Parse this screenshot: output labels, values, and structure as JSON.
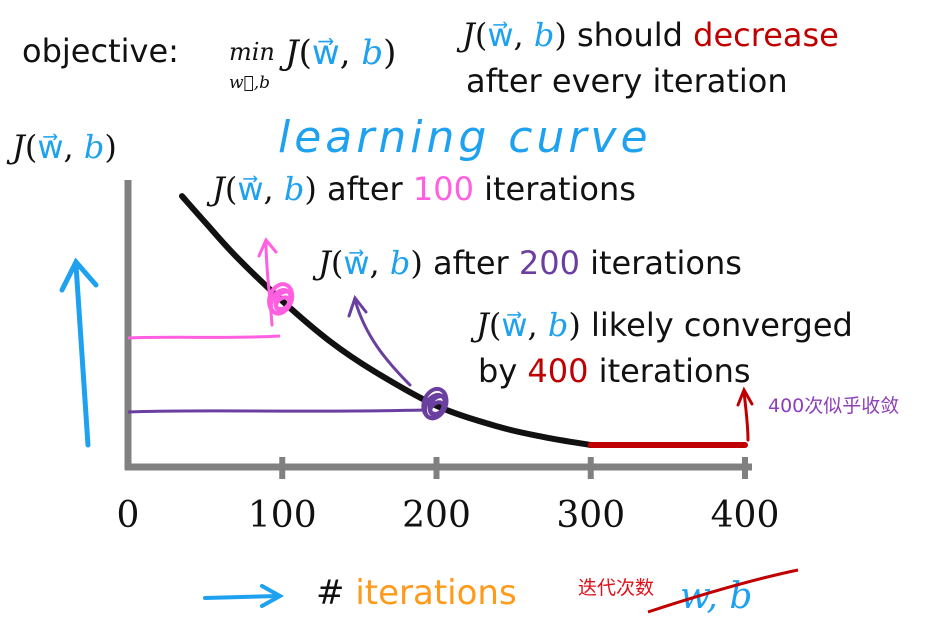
{
  "colors": {
    "blue": "#1ea1ef",
    "pink": "#ff5fe0",
    "purple": "#6a3fa0",
    "red": "#c00000",
    "orange": "#ff9a1a",
    "black": "#111111",
    "axis": "#808080"
  },
  "header": {
    "objective_label": "objective:",
    "min_word": "min",
    "min_sub": "w⃗,b",
    "J": "J",
    "w": "w⃗",
    "b": "b",
    "should": "should",
    "decrease": "decrease",
    "after_every": "after every iteration"
  },
  "annotations": {
    "learning_curve": "learning curve",
    "after": "after",
    "iterations": "iterations",
    "likely_converged": "likely converged",
    "by": "by",
    "a100": "100",
    "a200": "200",
    "a400": "400",
    "converged_note": "400次似乎收敛",
    "xlabel_hash": "#",
    "xlabel_word": "iterations",
    "xlabel_note": "迭代次数",
    "crossed_wb": "w, b"
  },
  "chart_data": {
    "type": "line",
    "ylabel": "J(w⃗,b)",
    "xlabel": "# iterations",
    "xlim": [
      0,
      400
    ],
    "ticks": [
      "0",
      "100",
      "200",
      "300",
      "400"
    ],
    "x": [
      35,
      50,
      70,
      100,
      130,
      160,
      200,
      240,
      270,
      300
    ],
    "y": [
      0.95,
      0.85,
      0.72,
      0.55,
      0.4,
      0.28,
      0.15,
      0.07,
      0.03,
      0.0
    ],
    "converged_segment": {
      "x": [
        300,
        400
      ],
      "y": [
        0.0,
        0.0
      ]
    },
    "markers": [
      {
        "x": 100,
        "y": 0.55
      },
      {
        "x": 200,
        "y": 0.15
      }
    ]
  }
}
